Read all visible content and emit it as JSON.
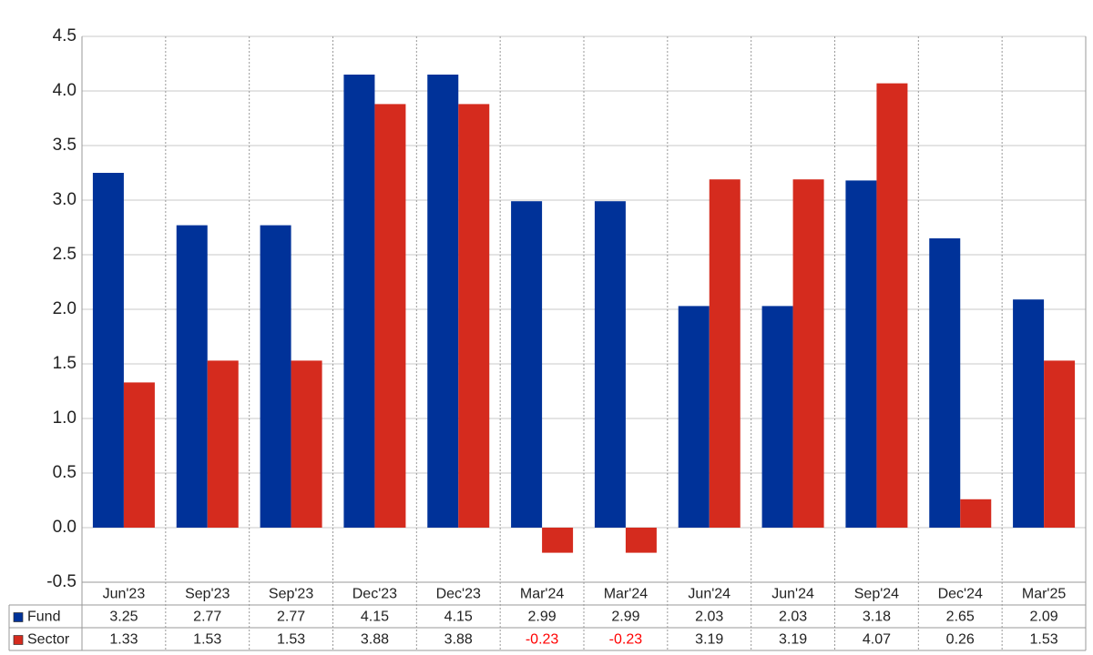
{
  "chart_data": {
    "type": "bar",
    "categories": [
      "Jun'23",
      "Sep'23",
      "Sep'23",
      "Dec'23",
      "Dec'23",
      "Mar'24",
      "Mar'24",
      "Jun'24",
      "Jun'24",
      "Sep'24",
      "Dec'24",
      "Mar'25"
    ],
    "series": [
      {
        "name": "Fund",
        "color": "#003299",
        "values": [
          3.25,
          2.77,
          2.77,
          4.15,
          4.15,
          2.99,
          2.99,
          2.03,
          2.03,
          3.18,
          2.65,
          2.09
        ]
      },
      {
        "name": "Sector",
        "color": "#d52b1e",
        "values": [
          1.33,
          1.53,
          1.53,
          3.88,
          3.88,
          -0.23,
          -0.23,
          3.19,
          3.19,
          4.07,
          0.26,
          1.53
        ]
      }
    ],
    "ylim": [
      -0.5,
      4.5
    ],
    "yticks": [
      -0.5,
      {
        "value": 0,
        "label": "0.0"
      },
      0.5,
      {
        "value": 1,
        "label": "1.0"
      },
      1.5,
      {
        "value": 2,
        "label": "2.0"
      },
      2.5,
      {
        "value": 3,
        "label": "3.0"
      },
      3.5,
      {
        "value": 4,
        "label": "4.0"
      },
      4.5
    ],
    "grid": true,
    "negative_color": "#ff0000"
  }
}
